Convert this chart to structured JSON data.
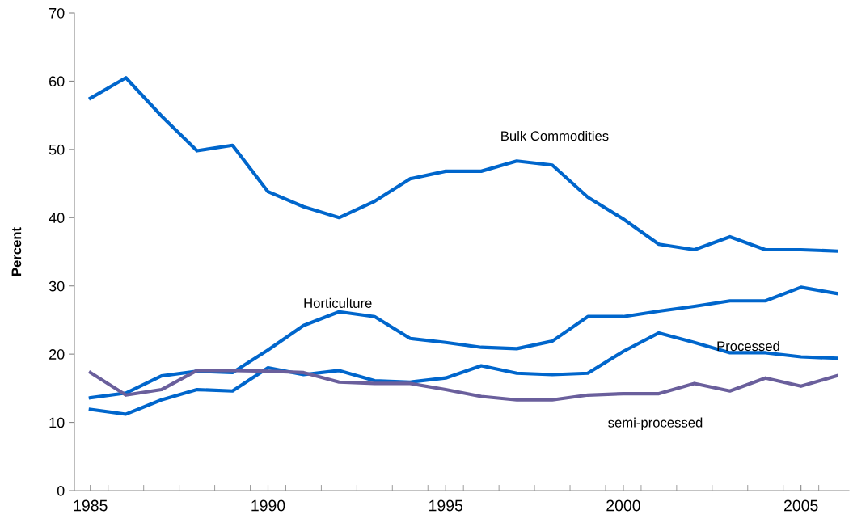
{
  "chart_data": {
    "type": "line",
    "ylabel": "Percent",
    "x": [
      1985,
      1986,
      1987,
      1988,
      1989,
      1990,
      1991,
      1992,
      1993,
      1994,
      1995,
      1996,
      1997,
      1998,
      1999,
      2000,
      2001,
      2002,
      2003,
      2004,
      2005,
      2006
    ],
    "series": [
      {
        "name": "Bulk Commodities",
        "color": "#0066cc",
        "values": [
          57.5,
          60.5,
          54.9,
          49.8,
          50.6,
          43.8,
          41.6,
          40.0,
          42.4,
          45.7,
          46.8,
          46.8,
          48.3,
          47.7,
          43.0,
          39.8,
          36.1,
          35.3,
          37.2,
          35.3,
          35.3,
          35.1
        ]
      },
      {
        "name": "Horticulture",
        "color": "#0066cc",
        "values": [
          13.6,
          14.3,
          16.8,
          17.5,
          17.3,
          20.6,
          24.2,
          26.2,
          25.5,
          22.3,
          21.7,
          21.0,
          20.8,
          21.9,
          25.5,
          25.5,
          26.3,
          27.0,
          27.8,
          27.8,
          29.8,
          28.9
        ]
      },
      {
        "name": "Processed",
        "color": "#0066cc",
        "values": [
          11.9,
          11.2,
          13.3,
          14.8,
          14.6,
          18.0,
          17.0,
          17.6,
          16.1,
          15.9,
          16.5,
          18.3,
          17.2,
          17.0,
          17.2,
          20.4,
          23.1,
          21.7,
          20.2,
          20.2,
          19.6,
          19.4
        ]
      },
      {
        "name": "semi-processed",
        "color": "#6a5f9c",
        "values": [
          17.3,
          14.0,
          14.8,
          17.6,
          17.6,
          17.5,
          17.3,
          15.9,
          15.7,
          15.7,
          14.8,
          13.8,
          13.3,
          13.3,
          14.0,
          14.2,
          14.2,
          15.7,
          14.6,
          16.5,
          15.3,
          16.8
        ]
      }
    ],
    "xlim": [
      1984.55,
      2006.35
    ],
    "xticks": [
      1985,
      1990,
      1995,
      2000,
      2005
    ],
    "ylim": [
      0,
      70
    ],
    "yticks": [
      0,
      10,
      20,
      30,
      40,
      50,
      60,
      70
    ],
    "grid": false,
    "legend": false,
    "marker": "none",
    "line_style": "solid"
  }
}
